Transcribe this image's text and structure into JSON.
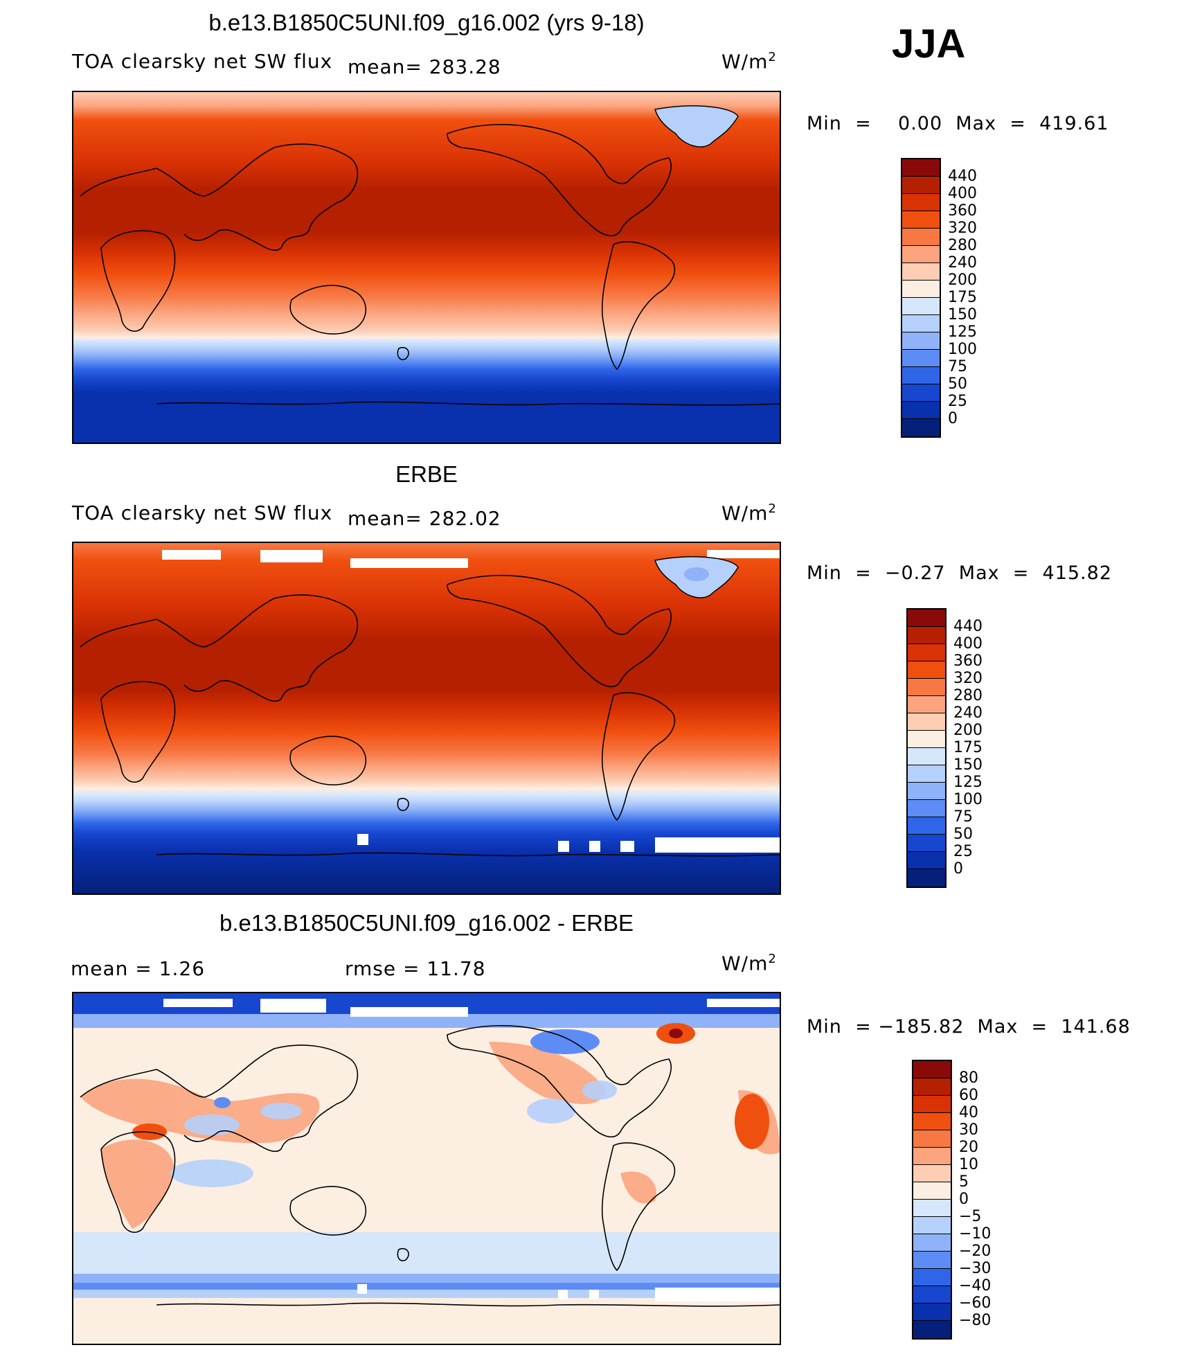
{
  "season": "JJA",
  "panels": [
    {
      "id": "model",
      "title": "b.e13.B1850C5UNI.f09_g16.002 (yrs 9-18)",
      "variable": "TOA clearsky net SW flux",
      "stat_left": "",
      "mean_text": "mean=  283.28",
      "units": "W/m",
      "units_exp": "2",
      "minmax": "Min  =    0.00  Max  =  419.61",
      "colorbar": {
        "ticks": [
          "440",
          "400",
          "360",
          "320",
          "280",
          "240",
          "200",
          "175",
          "150",
          "125",
          "100",
          "75",
          "50",
          "25",
          "0"
        ],
        "colors": [
          "#8a0a0a",
          "#b52000",
          "#d93205",
          "#f0500f",
          "#f87844",
          "#fba47e",
          "#fdcdb4",
          "#fdeee2",
          "#d6e7fb",
          "#b5d0fb",
          "#8fb2f8",
          "#5d8df4",
          "#2f66e8",
          "#1746cf",
          "#0930ad",
          "#05207a"
        ]
      }
    },
    {
      "id": "obs",
      "title": "ERBE",
      "variable": "TOA clearsky net SW flux",
      "stat_left": "",
      "mean_text": "mean=  282.02",
      "units": "W/m",
      "units_exp": "2",
      "minmax": "Min  =  −0.27  Max  =  415.82",
      "colorbar": {
        "ticks": [
          "440",
          "400",
          "360",
          "320",
          "280",
          "240",
          "200",
          "175",
          "150",
          "125",
          "100",
          "75",
          "50",
          "25",
          "0"
        ],
        "colors": [
          "#8a0a0a",
          "#b52000",
          "#d93205",
          "#f0500f",
          "#f87844",
          "#fba47e",
          "#fdcdb4",
          "#fdeee2",
          "#d6e7fb",
          "#b5d0fb",
          "#8fb2f8",
          "#5d8df4",
          "#2f66e8",
          "#1746cf",
          "#0930ad",
          "#05207a"
        ]
      }
    },
    {
      "id": "diff",
      "title": "b.e13.B1850C5UNI.f09_g16.002 - ERBE",
      "variable": "",
      "stat_left": "mean  =      1.26",
      "mean_text": "rmse  =    11.78",
      "units": "W/m",
      "units_exp": "2",
      "minmax": "Min  = −185.82  Max  =  141.68",
      "colorbar": {
        "ticks": [
          "80",
          "60",
          "40",
          "30",
          "20",
          "10",
          "5",
          "0",
          "−5",
          "−10",
          "−20",
          "−30",
          "−40",
          "−60",
          "−80"
        ],
        "colors": [
          "#8a0a0a",
          "#b52000",
          "#d93205",
          "#f0500f",
          "#f87844",
          "#fba47e",
          "#fdcdb4",
          "#fdeee2",
          "#d6e7fb",
          "#b5d0fb",
          "#8fb2f8",
          "#5d8df4",
          "#2f66e8",
          "#1746cf",
          "#0930ad",
          "#05207a"
        ]
      }
    }
  ]
}
